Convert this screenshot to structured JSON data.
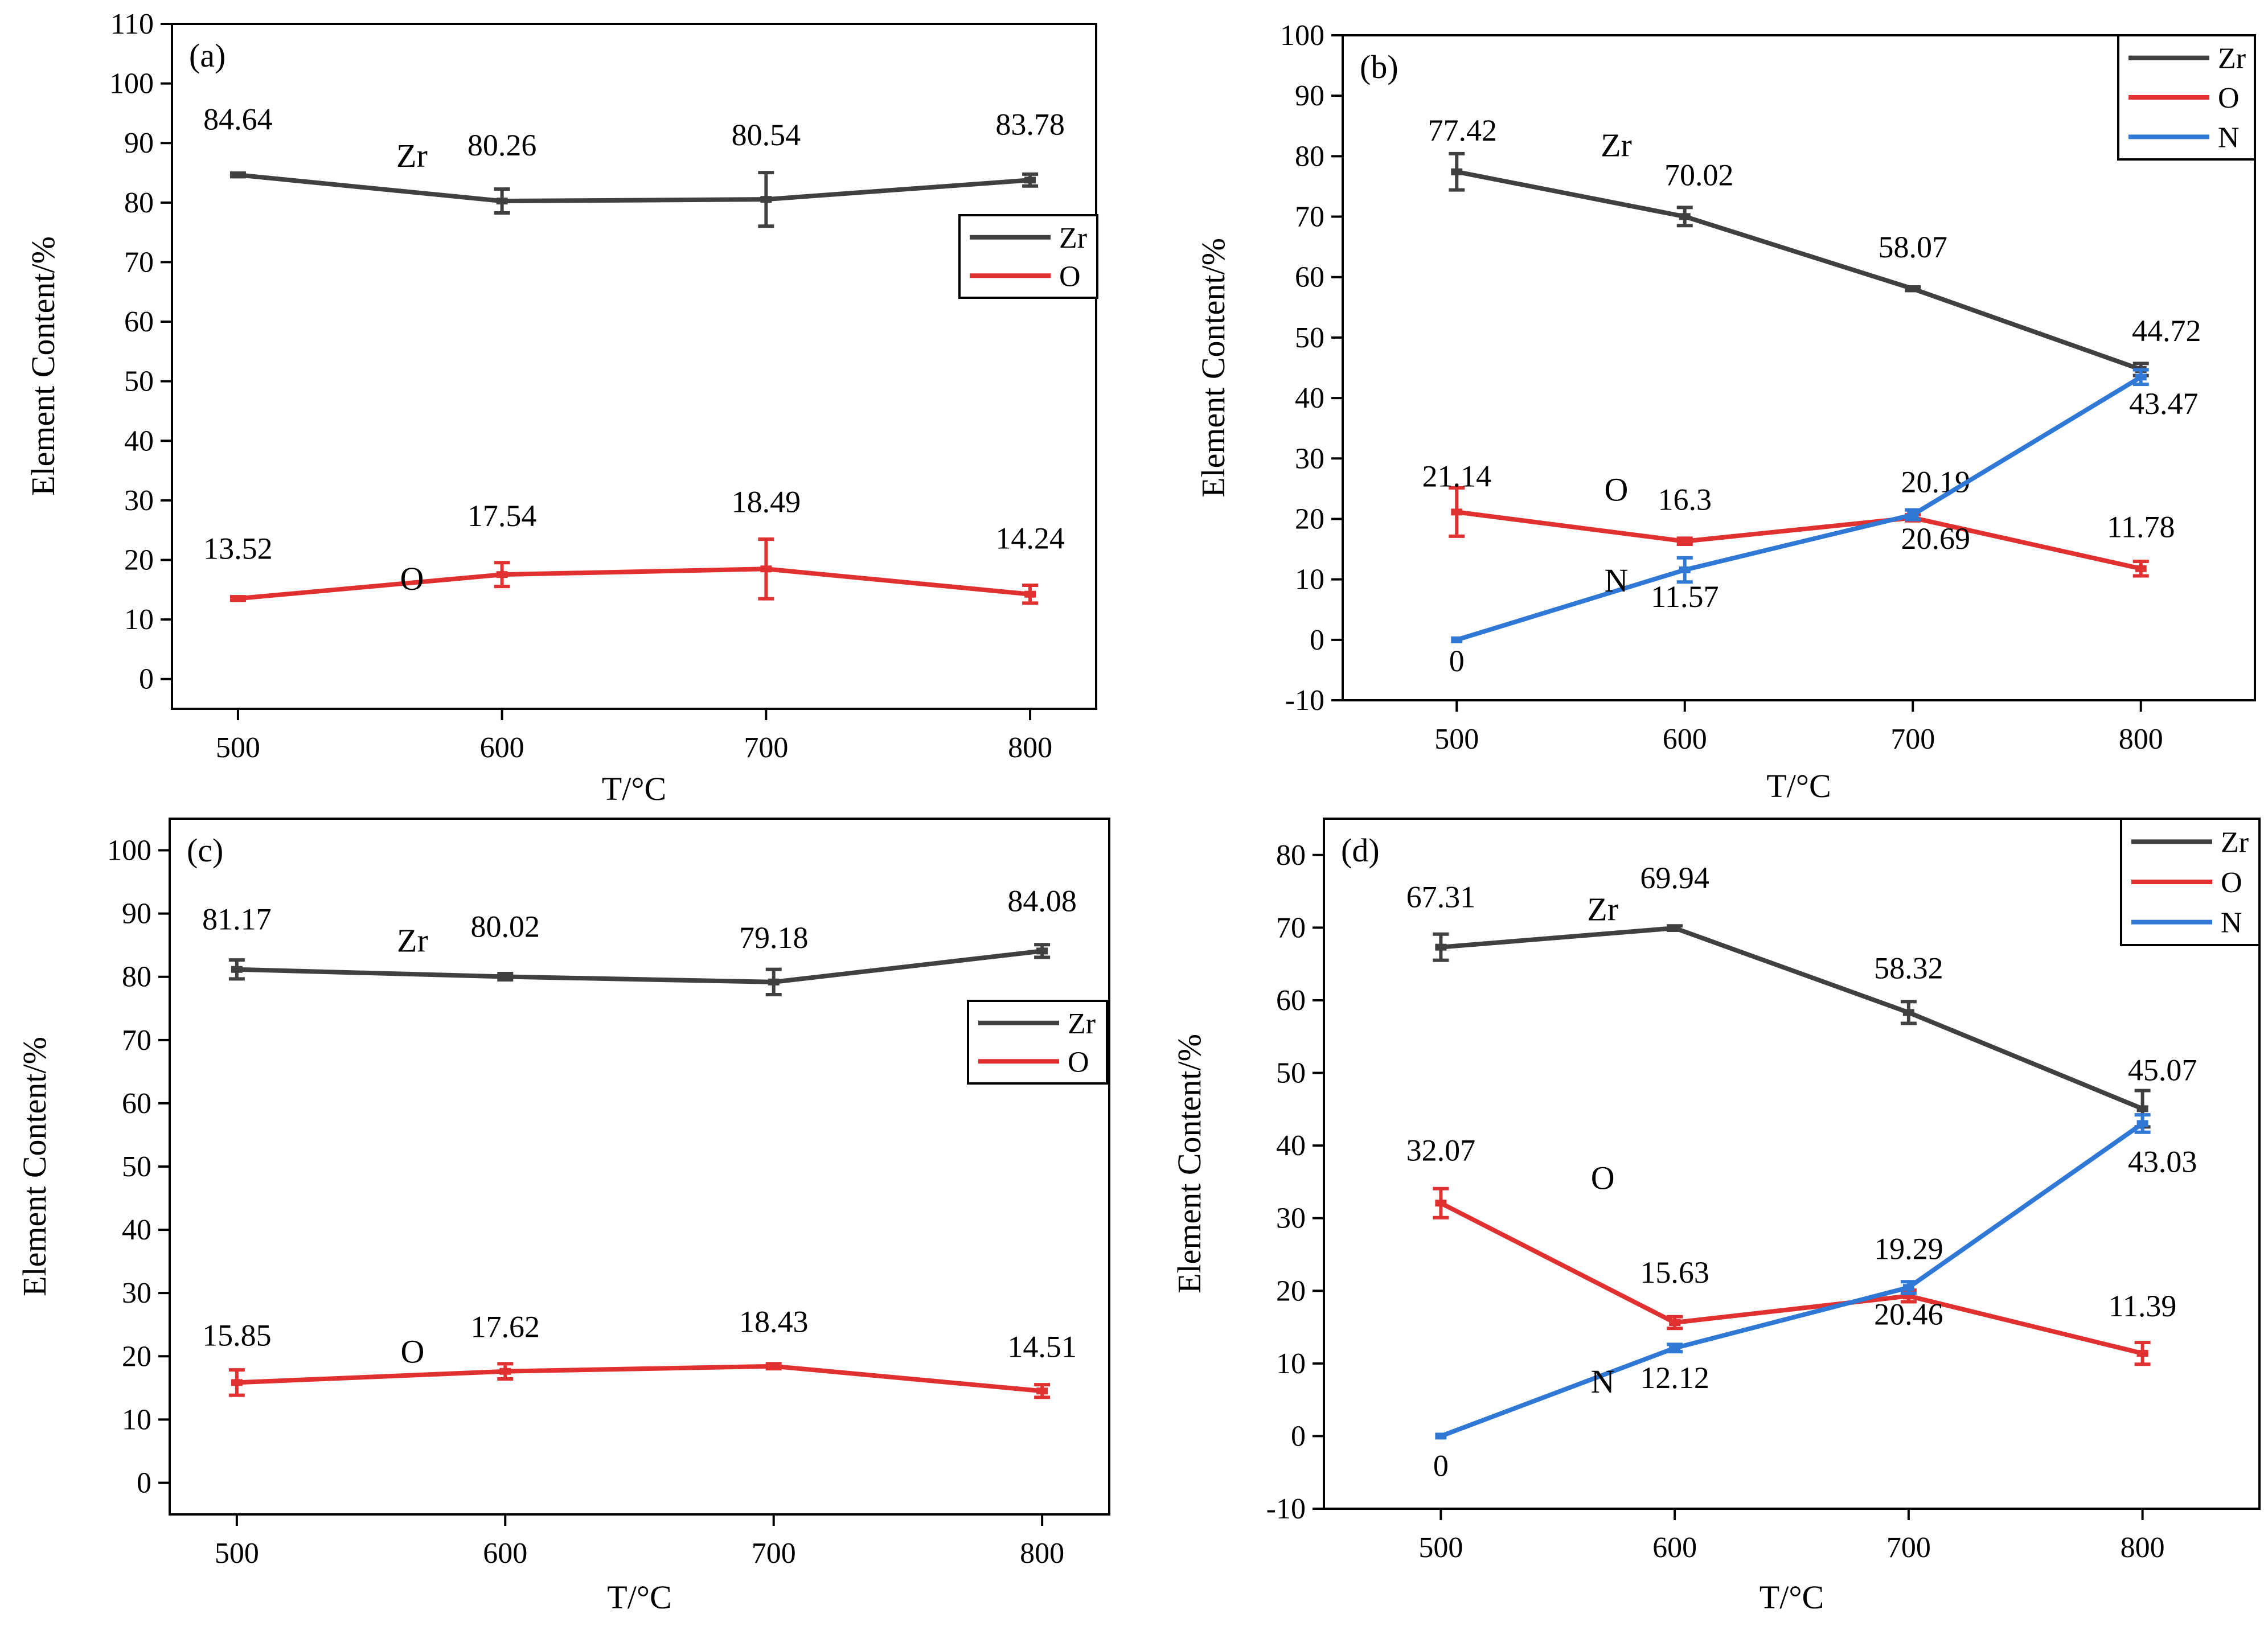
{
  "chart_data": [
    {
      "type": "line",
      "panel_label": "(a)",
      "xlabel": "T/°C",
      "ylabel": "Element Content/%",
      "xlim": [
        475,
        825
      ],
      "ylim": [
        -5,
        110
      ],
      "x_ticks": [
        500,
        600,
        700,
        800
      ],
      "y_ticks": [
        0,
        10,
        20,
        30,
        40,
        50,
        60,
        70,
        80,
        90,
        100,
        110
      ],
      "grid": false,
      "legend": "right",
      "series": [
        {
          "name": "Zr",
          "color": "#404040",
          "x": [
            500,
            600,
            700,
            800
          ],
          "values": [
            84.64,
            80.26,
            80.54,
            83.78
          ],
          "errors": [
            0.3,
            2.0,
            4.5,
            1.0
          ],
          "value_labels": [
            "84.64",
            "80.26",
            "80.54",
            "83.78"
          ],
          "inline_label": "Zr"
        },
        {
          "name": "O",
          "color": "#e03030",
          "x": [
            500,
            600,
            700,
            800
          ],
          "values": [
            13.52,
            17.54,
            18.49,
            14.24
          ],
          "errors": [
            0.3,
            2.0,
            5.0,
            1.5
          ],
          "value_labels": [
            "13.52",
            "17.54",
            "18.49",
            "14.24"
          ],
          "inline_label": "O"
        }
      ]
    },
    {
      "type": "line",
      "panel_label": "(b)",
      "xlabel": "T/°C",
      "ylabel": "Element Content/%",
      "xlim": [
        450,
        850
      ],
      "ylim": [
        -10,
        100
      ],
      "x_ticks": [
        500,
        600,
        700,
        800
      ],
      "y_ticks": [
        -10,
        0,
        10,
        20,
        30,
        40,
        50,
        60,
        70,
        80,
        90,
        100
      ],
      "grid": false,
      "legend": "top-right",
      "series": [
        {
          "name": "Zr",
          "color": "#404040",
          "x": [
            500,
            600,
            700,
            800
          ],
          "values": [
            77.42,
            70.02,
            58.07,
            44.72
          ],
          "errors": [
            3.0,
            1.5,
            0.3,
            1.0
          ],
          "value_labels": [
            "77.42",
            "70.02",
            "58.07",
            "44.72"
          ],
          "inline_label": "Zr"
        },
        {
          "name": "O",
          "color": "#e03030",
          "x": [
            500,
            600,
            700,
            800
          ],
          "values": [
            21.14,
            16.3,
            20.19,
            11.78
          ],
          "errors": [
            4.0,
            0.5,
            0.5,
            1.2
          ],
          "value_labels": [
            "21.14",
            "16.3",
            "20.19",
            "11.78"
          ],
          "inline_label": "O"
        },
        {
          "name": "N",
          "color": "#2f78d6",
          "x": [
            500,
            600,
            700,
            800
          ],
          "values": [
            0,
            11.57,
            20.69,
            43.47
          ],
          "errors": [
            0,
            2.0,
            0.8,
            1.2
          ],
          "value_labels": [
            "0",
            "11.57",
            "20.69",
            "43.47"
          ],
          "inline_label": "N"
        }
      ]
    },
    {
      "type": "line",
      "panel_label": "(c)",
      "xlabel": "T/°C",
      "ylabel": "Element Content/%",
      "xlim": [
        475,
        825
      ],
      "ylim": [
        -5,
        105
      ],
      "x_ticks": [
        500,
        600,
        700,
        800
      ],
      "y_ticks": [
        0,
        10,
        20,
        30,
        40,
        50,
        60,
        70,
        80,
        90,
        100
      ],
      "grid": false,
      "legend": "right",
      "series": [
        {
          "name": "Zr",
          "color": "#404040",
          "x": [
            500,
            600,
            700,
            800
          ],
          "values": [
            81.17,
            80.02,
            79.18,
            84.08
          ],
          "errors": [
            1.5,
            0.5,
            2.0,
            1.0
          ],
          "value_labels": [
            "81.17",
            "80.02",
            "79.18",
            "84.08"
          ],
          "inline_label": "Zr"
        },
        {
          "name": "O",
          "color": "#e03030",
          "x": [
            500,
            600,
            700,
            800
          ],
          "values": [
            15.85,
            17.62,
            18.43,
            14.51
          ],
          "errors": [
            2.0,
            1.2,
            0.4,
            1.0
          ],
          "value_labels": [
            "15.85",
            "17.62",
            "18.43",
            "14.51"
          ],
          "inline_label": "O"
        }
      ]
    },
    {
      "type": "line",
      "panel_label": "(d)",
      "xlabel": "T/°C",
      "ylabel": "Element Content/%",
      "xlim": [
        450,
        850
      ],
      "ylim": [
        -10,
        85
      ],
      "x_ticks": [
        500,
        600,
        700,
        800
      ],
      "y_ticks": [
        -10,
        0,
        10,
        20,
        30,
        40,
        50,
        60,
        70,
        80
      ],
      "grid": false,
      "legend": "top-right",
      "series": [
        {
          "name": "Zr",
          "color": "#404040",
          "x": [
            500,
            600,
            700,
            800
          ],
          "values": [
            67.31,
            69.94,
            58.32,
            45.07
          ],
          "errors": [
            1.8,
            0.3,
            1.5,
            2.5
          ],
          "value_labels": [
            "67.31",
            "69.94",
            "58.32",
            "45.07"
          ],
          "inline_label": "Zr"
        },
        {
          "name": "O",
          "color": "#e03030",
          "x": [
            500,
            600,
            700,
            800
          ],
          "values": [
            32.07,
            15.63,
            19.29,
            11.39
          ],
          "errors": [
            2.0,
            0.8,
            0.8,
            1.5
          ],
          "value_labels": [
            "32.07",
            "15.63",
            "19.29",
            "11.39"
          ],
          "inline_label": "O"
        },
        {
          "name": "N",
          "color": "#2f78d6",
          "x": [
            500,
            600,
            700,
            800
          ],
          "values": [
            0,
            12.12,
            20.46,
            43.03
          ],
          "errors": [
            0,
            0.5,
            0.8,
            1.2
          ],
          "value_labels": [
            "0",
            "12.12",
            "20.46",
            "43.03"
          ],
          "inline_label": "N"
        }
      ]
    }
  ]
}
